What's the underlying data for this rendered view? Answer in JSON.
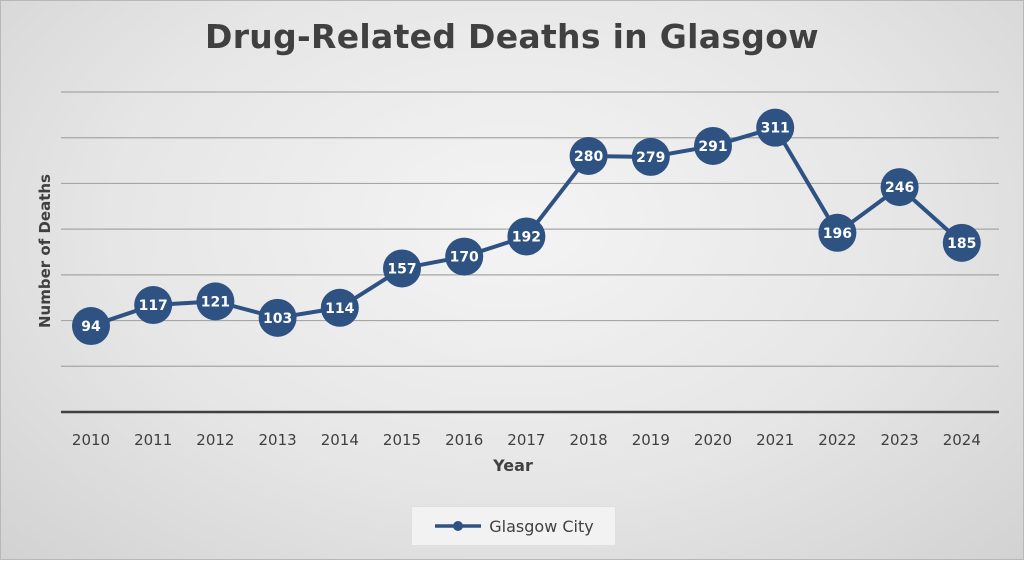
{
  "chart_data": {
    "type": "line",
    "title": "Drug-Related Deaths in Glasgow",
    "xlabel": "Year",
    "ylabel": "Number of Deaths",
    "categories": [
      "2010",
      "2011",
      "2012",
      "2013",
      "2014",
      "2015",
      "2016",
      "2017",
      "2018",
      "2019",
      "2020",
      "2021",
      "2022",
      "2023",
      "2024"
    ],
    "series": [
      {
        "name": "Glasgow City",
        "values": [
          94,
          117,
          121,
          103,
          114,
          157,
          170,
          192,
          280,
          279,
          291,
          311,
          196,
          246,
          185
        ],
        "color": "#2e5282"
      }
    ],
    "ylim": [
      0,
      350
    ],
    "y_grid_step": 50,
    "grid": true,
    "y_tick_labels_shown": false,
    "data_labels": true,
    "legend": "bottom"
  }
}
